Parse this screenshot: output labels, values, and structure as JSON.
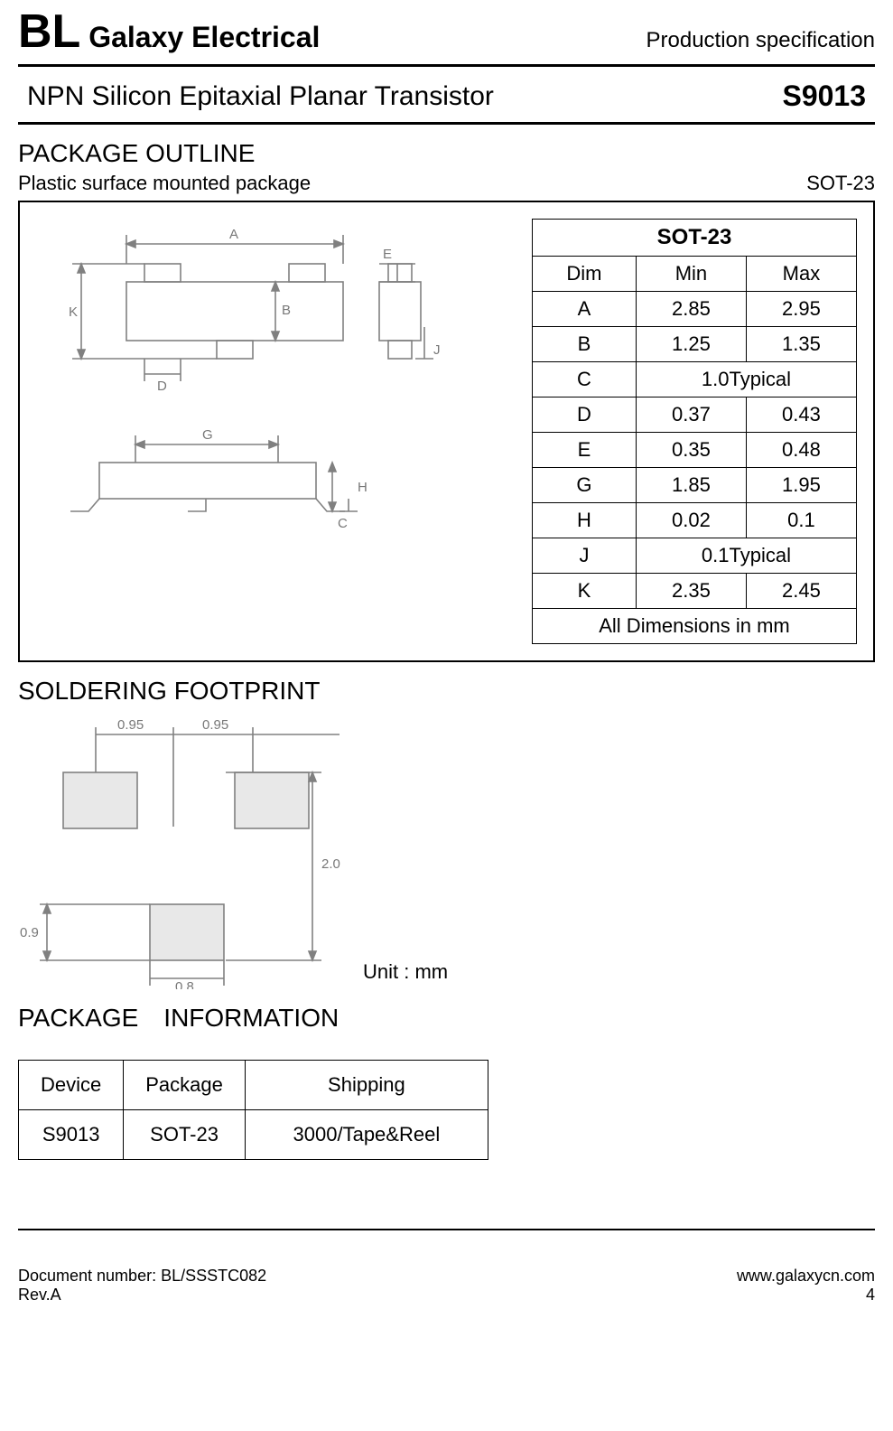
{
  "header": {
    "company_prefix": "BL",
    "company_name": " Galaxy Electrical",
    "doc_type": "Production specification",
    "product_title": "NPN Silicon Epitaxial Planar Transistor",
    "part_number": "S9013"
  },
  "outline": {
    "heading": "PACKAGE OUTLINE",
    "subtitle": "Plastic surface mounted package",
    "package_type": "SOT-23",
    "table_title": "SOT-23",
    "columns": {
      "dim": "Dim",
      "min": "Min",
      "max": "Max"
    },
    "rows": [
      {
        "dim": "A",
        "min": "2.85",
        "max": "2.95"
      },
      {
        "dim": "B",
        "min": "1.25",
        "max": "1.35"
      },
      {
        "dim": "C",
        "typical": "1.0Typical"
      },
      {
        "dim": "D",
        "min": "0.37",
        "max": "0.43"
      },
      {
        "dim": "E",
        "min": "0.35",
        "max": "0.48"
      },
      {
        "dim": "G",
        "min": "1.85",
        "max": "1.95"
      },
      {
        "dim": "H",
        "min": "0.02",
        "max": "0.1"
      },
      {
        "dim": "J",
        "typical": "0.1Typical"
      },
      {
        "dim": "K",
        "min": "2.35",
        "max": "2.45"
      }
    ],
    "footer": "All Dimensions in mm",
    "diagram": {
      "labels": [
        "A",
        "B",
        "C",
        "D",
        "E",
        "G",
        "H",
        "J",
        "K"
      ],
      "colors": {
        "line": "#808080",
        "fill_light": "#f8f8f8",
        "fill_dark": "#c0c0c0"
      }
    }
  },
  "footprint": {
    "heading": "SOLDERING FOOTPRINT",
    "unit": "Unit : mm",
    "dims": {
      "pad_w1": "0.95",
      "pad_w2": "0.95",
      "pad_h_small": "0.9",
      "body_h": "2.0",
      "pad_w_bottom": "0.8"
    },
    "colors": {
      "line": "#808080",
      "fill": "#e8e8e8"
    }
  },
  "package_info": {
    "heading": "PACKAGE INFORMATION",
    "columns": {
      "device": "Device",
      "package": "Package",
      "shipping": "Shipping"
    },
    "row": {
      "device": "S9013",
      "package": "SOT-23",
      "shipping": "3000/Tape&Reel"
    }
  },
  "footer": {
    "doc_number": "Document number: BL/SSSTC082",
    "rev": "Rev.A",
    "url": "www.galaxycn.com",
    "page": "4"
  }
}
